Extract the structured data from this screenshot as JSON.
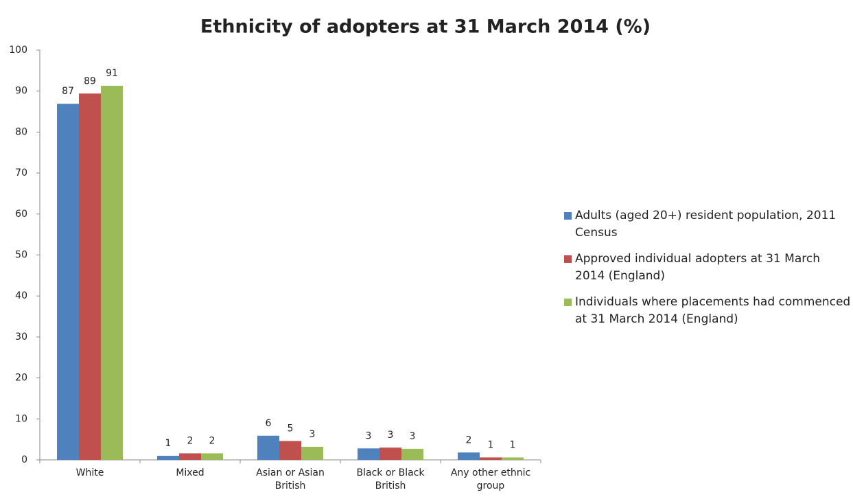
{
  "chart_data": {
    "type": "bar",
    "title": "Ethnicity of adopters at 31 March 2014 (%)",
    "categories": [
      "White",
      "Mixed",
      "Asian or Asian British",
      "Black or Black British",
      "Any other ethnic group"
    ],
    "series": [
      {
        "name": "Adults (aged 20+) resident population, 2011 Census",
        "color": "#4f81bd",
        "values": [
          86.9,
          1.0,
          5.9,
          2.8,
          1.8
        ],
        "value_labels": [
          "87",
          "1",
          "6",
          "3",
          "2"
        ]
      },
      {
        "name": "Approved individual adopters at 31 March 2014 (England)",
        "color": "#c0504d",
        "values": [
          89.4,
          1.6,
          4.6,
          3.0,
          0.6
        ],
        "value_labels": [
          "89",
          "2",
          "5",
          "3",
          "1"
        ]
      },
      {
        "name": "Individuals where placements had commenced at 31 March 2014 (England)",
        "color": "#9bbb59",
        "values": [
          91.3,
          1.6,
          3.2,
          2.7,
          0.6
        ],
        "value_labels": [
          "91",
          "2",
          "3",
          "3",
          "1"
        ]
      }
    ],
    "ylim": [
      0,
      100
    ],
    "yticks": [
      0,
      10,
      20,
      30,
      40,
      50,
      60,
      70,
      80,
      90,
      100
    ],
    "grid": false,
    "legend": "right"
  }
}
